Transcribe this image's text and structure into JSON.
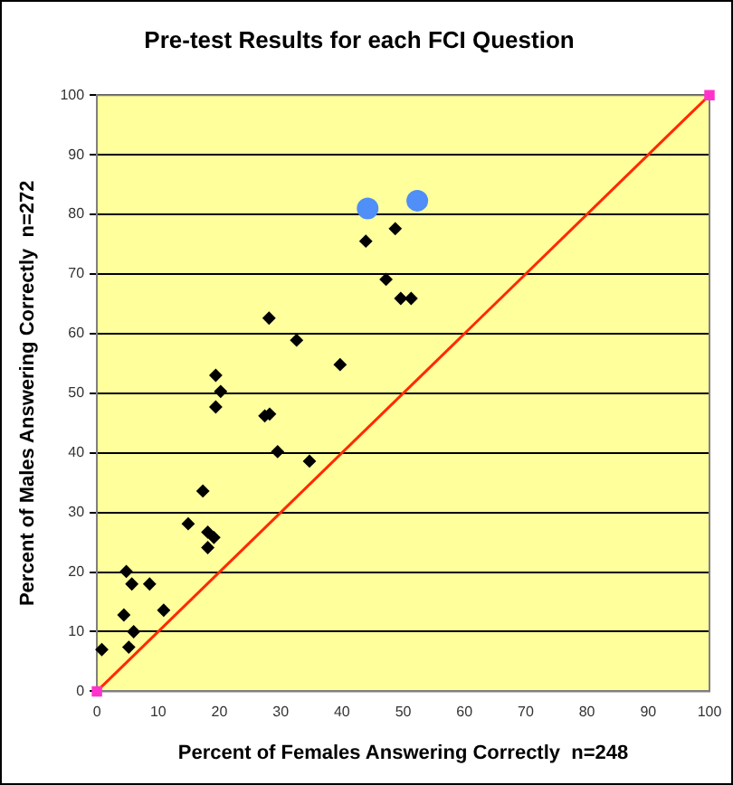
{
  "chart_data": {
    "type": "scatter",
    "title": "Pre-test Results for each FCI Question",
    "xlabel": "Percent of Females Answering Correctly  n=248",
    "ylabel": "Percent of Males Answering Correctly  n=272",
    "xlim": [
      0,
      100
    ],
    "ylim": [
      0,
      100
    ],
    "xticks": [
      0,
      10,
      20,
      30,
      40,
      50,
      60,
      70,
      80,
      90,
      100
    ],
    "yticks": [
      0,
      10,
      20,
      30,
      40,
      50,
      60,
      70,
      80,
      90,
      100
    ],
    "grid": "y",
    "legend": false,
    "marker": "diamond",
    "series": [
      {
        "color": "#000000",
        "x": [
          43.9,
          48.7,
          47.2,
          49.6,
          51.3,
          28.1,
          32.6,
          39.7,
          19.4,
          20.2,
          19.4,
          27.4,
          28.2,
          29.5,
          34.7,
          17.3,
          14.9,
          18.1,
          19.1,
          18.1,
          4.8,
          5.7,
          8.6,
          4.4,
          10.9,
          6.0,
          5.2,
          0.8
        ],
        "values": [
          75.5,
          77.6,
          69.1,
          65.9,
          65.9,
          62.6,
          58.9,
          54.8,
          53.0,
          50.3,
          47.7,
          46.2,
          46.5,
          40.2,
          38.6,
          33.6,
          28.1,
          26.7,
          25.8,
          24.1,
          20.1,
          18.0,
          18.0,
          12.8,
          13.6,
          10.0,
          7.4,
          7.0
        ]
      },
      {
        "color": "#4f8ff7",
        "marker": "circle",
        "x": [
          44.2,
          52.3
        ],
        "values": [
          81.0,
          82.3
        ]
      },
      {
        "type": "line",
        "color": "#ff2a00",
        "marker": "square",
        "x": [
          0,
          100
        ],
        "values": [
          0,
          100
        ]
      }
    ]
  }
}
